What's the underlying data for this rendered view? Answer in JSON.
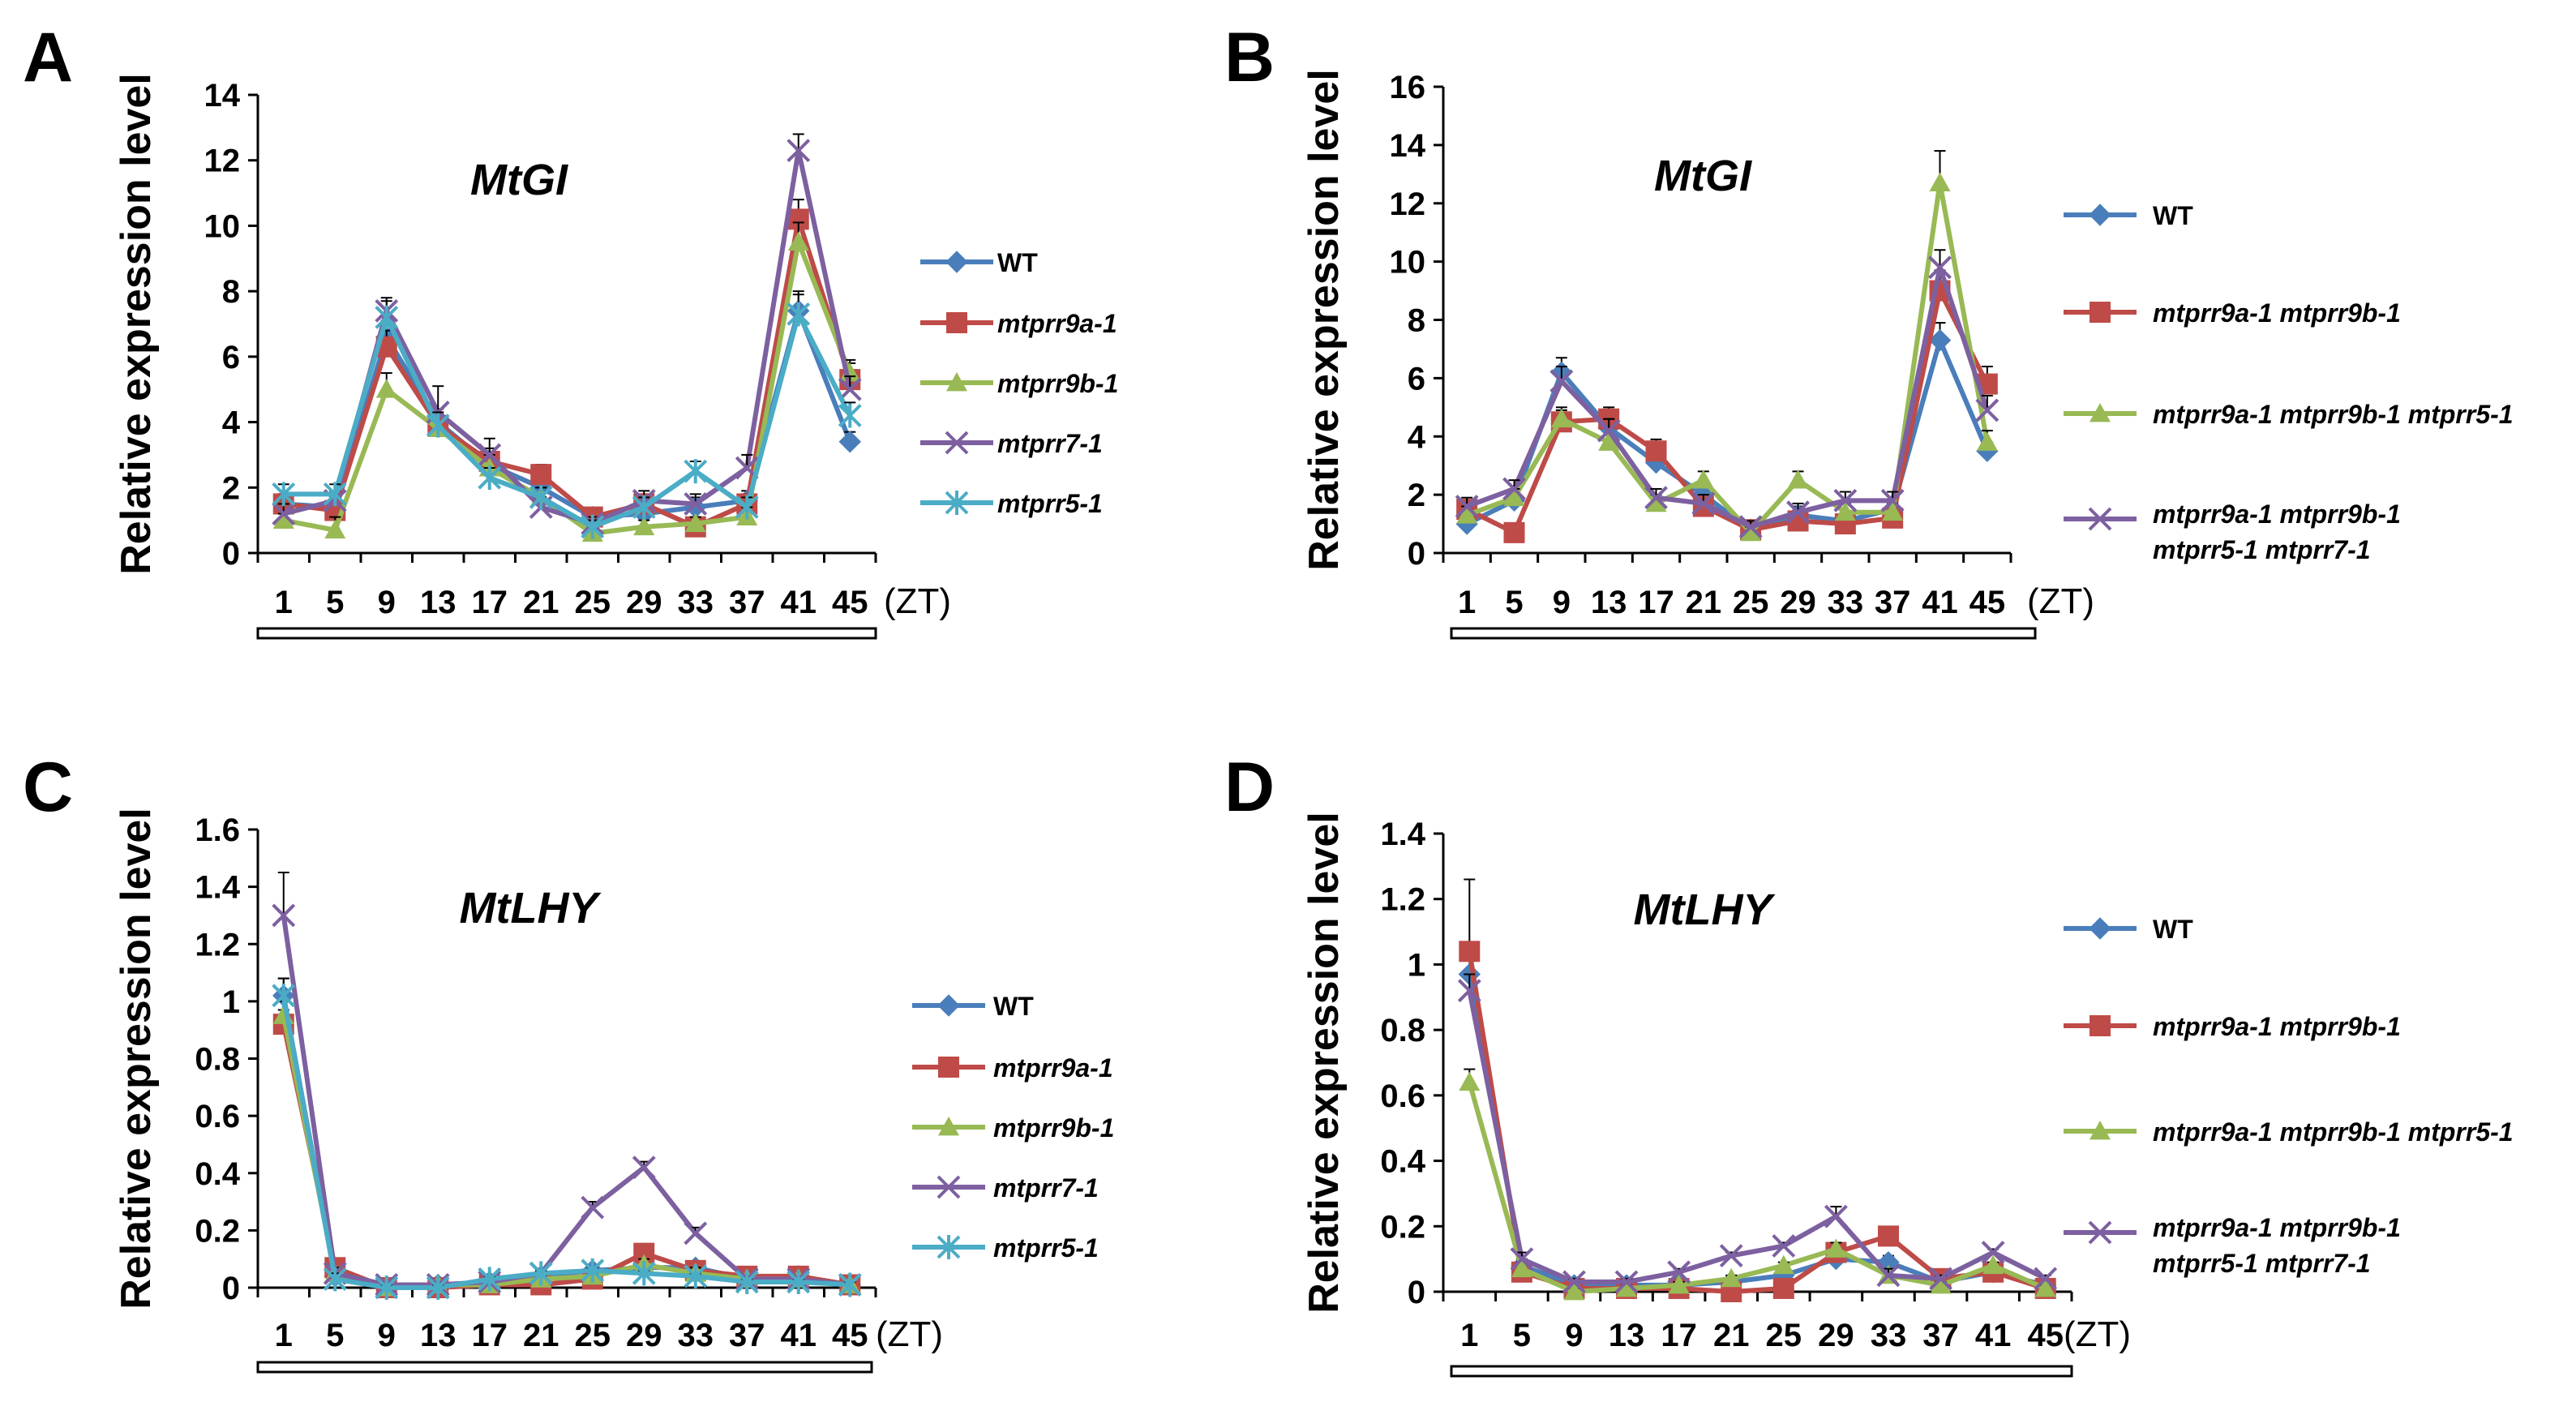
{
  "chart_data": [
    {
      "panel": "A",
      "type": "line",
      "title": "MtGI",
      "ylabel": "Relative expression level",
      "x_unit": "(ZT)",
      "ylim": [
        0,
        14
      ],
      "ytick_step": 2,
      "yticks": [
        "0",
        "2",
        "4",
        "6",
        "8",
        "10",
        "12",
        "14"
      ],
      "categories": [
        "1",
        "5",
        "9",
        "13",
        "17",
        "21",
        "25",
        "29",
        "33",
        "37",
        "41",
        "45"
      ],
      "series": [
        {
          "name": "WT",
          "color": "#4a7ebb",
          "marker": "diamond",
          "values": [
            1.5,
            1.4,
            6.6,
            4.0,
            2.7,
            2.0,
            1.1,
            1.2,
            1.4,
            1.6,
            7.4,
            3.4
          ],
          "errors": [
            0.3,
            0.3,
            0.5,
            0.4,
            0.4,
            0.3,
            0.2,
            0.2,
            0.3,
            0.3,
            0.6,
            0.3
          ]
        },
        {
          "name": "mtprr9a-1",
          "color": "#be4b48",
          "marker": "square",
          "values": [
            1.5,
            1.3,
            6.3,
            3.9,
            2.8,
            2.4,
            1.1,
            1.5,
            0.8,
            1.5,
            10.2,
            5.3
          ],
          "errors": [
            0.3,
            0.3,
            0.5,
            0.4,
            0.4,
            0.3,
            0.2,
            0.3,
            0.2,
            0.3,
            0.6,
            0.5
          ]
        },
        {
          "name": "mtprr9b-1",
          "color": "#98b954",
          "marker": "triangle",
          "values": [
            1.0,
            0.7,
            5.0,
            3.8,
            2.6,
            1.7,
            0.6,
            0.8,
            0.9,
            1.1,
            9.5,
            5.5
          ],
          "errors": [
            0.2,
            0.4,
            0.5,
            0.4,
            0.4,
            0.3,
            0.2,
            0.2,
            0.2,
            0.3,
            0.6,
            0.4
          ]
        },
        {
          "name": "mtprr7-1",
          "color": "#7d60a0",
          "marker": "x",
          "values": [
            1.2,
            1.6,
            7.4,
            4.3,
            3.0,
            1.4,
            0.9,
            1.6,
            1.5,
            2.6,
            12.3,
            5.0
          ],
          "errors": [
            0.3,
            0.3,
            0.4,
            0.8,
            0.5,
            0.3,
            0.2,
            0.3,
            0.3,
            0.4,
            0.5,
            0.4
          ]
        },
        {
          "name": "mtprr5-1",
          "color": "#4bacc6",
          "marker": "asterisk",
          "values": [
            1.8,
            1.8,
            7.2,
            3.9,
            2.3,
            1.7,
            0.8,
            1.4,
            2.5,
            1.4,
            7.3,
            4.2
          ],
          "errors": [
            0.3,
            0.3,
            0.5,
            0.4,
            0.3,
            0.3,
            0.2,
            0.3,
            0.3,
            0.3,
            0.6,
            0.4
          ]
        }
      ]
    },
    {
      "panel": "B",
      "type": "line",
      "title": "MtGI",
      "ylabel": "Relative expression level",
      "x_unit": "(ZT)",
      "ylim": [
        0,
        16
      ],
      "ytick_step": 2,
      "yticks": [
        "0",
        "2",
        "4",
        "6",
        "8",
        "10",
        "12",
        "14",
        "16"
      ],
      "categories": [
        "1",
        "5",
        "9",
        "13",
        "17",
        "21",
        "25",
        "29",
        "33",
        "37",
        "41",
        "45"
      ],
      "series": [
        {
          "name": "WT",
          "color": "#4a7ebb",
          "marker": "diamond",
          "values": [
            1.0,
            1.8,
            6.2,
            4.3,
            3.1,
            2.0,
            0.8,
            1.3,
            1.1,
            1.5,
            7.3,
            3.5
          ],
          "errors": [
            0.2,
            0.3,
            0.5,
            0.4,
            0.4,
            0.3,
            0.2,
            0.3,
            0.2,
            0.3,
            0.6,
            0.3
          ]
        },
        {
          "name": "mtprr9a-1 mtprr9b-1",
          "color": "#be4b48",
          "marker": "square",
          "values": [
            1.5,
            0.7,
            4.5,
            4.6,
            3.5,
            1.6,
            0.8,
            1.1,
            1.0,
            1.2,
            9.0,
            5.8
          ],
          "errors": [
            0.3,
            0.2,
            0.4,
            0.4,
            0.4,
            0.3,
            0.2,
            0.2,
            0.2,
            0.3,
            0.7,
            0.6
          ]
        },
        {
          "name": "mtprr9a-1 mtprr9b-1 mtprr5-1",
          "color": "#98b954",
          "marker": "triangle",
          "values": [
            1.3,
            1.9,
            4.6,
            3.8,
            1.7,
            2.5,
            0.7,
            2.5,
            1.4,
            1.4,
            12.7,
            3.8
          ],
          "errors": [
            0.3,
            0.3,
            0.4,
            0.8,
            0.3,
            0.3,
            0.2,
            0.3,
            0.3,
            0.3,
            1.1,
            0.4
          ]
        },
        {
          "name": "mtprr9a-1 mtprr9b-1 mtprr5-1 mtprr7-1",
          "color": "#7d60a0",
          "marker": "x",
          "values": [
            1.6,
            2.2,
            5.9,
            4.2,
            1.9,
            1.7,
            0.9,
            1.4,
            1.8,
            1.8,
            9.8,
            4.9
          ],
          "errors": [
            0.3,
            0.3,
            0.5,
            0.4,
            0.3,
            0.3,
            0.2,
            0.3,
            0.3,
            0.3,
            0.6,
            0.5
          ]
        }
      ],
      "legend_lines": [
        [
          "mtprr9a-1 mtprr9b-1 mtprr5-1 mtprr7-1"
        ]
      ]
    },
    {
      "panel": "C",
      "type": "line",
      "title": "MtLHY",
      "ylabel": "Relative expression level",
      "x_unit": "(ZT)",
      "ylim": [
        0,
        1.6
      ],
      "ytick_step": 0.2,
      "yticks": [
        "0",
        "0.2",
        "0.4",
        "0.6",
        "0.8",
        "1",
        "1.2",
        "1.4",
        "1.6"
      ],
      "categories": [
        "1",
        "5",
        "9",
        "13",
        "17",
        "21",
        "25",
        "29",
        "33",
        "37",
        "41",
        "45"
      ],
      "series": [
        {
          "name": "WT",
          "color": "#4a7ebb",
          "marker": "diamond",
          "values": [
            1.02,
            0.04,
            0.0,
            0.01,
            0.02,
            0.04,
            0.06,
            0.07,
            0.07,
            0.03,
            0.04,
            0.01
          ],
          "errors": [
            0.06,
            0.02,
            0.01,
            0.01,
            0.01,
            0.01,
            0.01,
            0.02,
            0.02,
            0.01,
            0.01,
            0.01
          ]
        },
        {
          "name": "mtprr9a-1",
          "color": "#be4b48",
          "marker": "square",
          "values": [
            0.92,
            0.07,
            0.0,
            0.0,
            0.01,
            0.01,
            0.03,
            0.12,
            0.06,
            0.04,
            0.04,
            0.01
          ],
          "errors": [
            0.05,
            0.02,
            0.01,
            0.01,
            0.01,
            0.01,
            0.01,
            0.02,
            0.02,
            0.01,
            0.01,
            0.01
          ]
        },
        {
          "name": "mtprr9b-1",
          "color": "#98b954",
          "marker": "triangle",
          "values": [
            0.95,
            0.05,
            0.0,
            0.01,
            0.01,
            0.03,
            0.04,
            0.08,
            0.05,
            0.03,
            0.03,
            0.01
          ],
          "errors": [
            0.05,
            0.02,
            0.01,
            0.01,
            0.01,
            0.01,
            0.01,
            0.02,
            0.02,
            0.01,
            0.01,
            0.01
          ]
        },
        {
          "name": "mtprr7-1",
          "color": "#7d60a0",
          "marker": "x",
          "values": [
            1.3,
            0.05,
            0.01,
            0.01,
            0.02,
            0.05,
            0.28,
            0.42,
            0.19,
            0.03,
            0.03,
            0.01
          ],
          "errors": [
            0.15,
            0.02,
            0.01,
            0.01,
            0.01,
            0.01,
            0.02,
            0.02,
            0.02,
            0.01,
            0.01,
            0.01
          ]
        },
        {
          "name": "mtprr5-1",
          "color": "#4bacc6",
          "marker": "asterisk",
          "values": [
            1.02,
            0.03,
            0.0,
            0.0,
            0.03,
            0.05,
            0.06,
            0.05,
            0.04,
            0.02,
            0.02,
            0.01
          ],
          "errors": [
            0.06,
            0.02,
            0.01,
            0.01,
            0.01,
            0.01,
            0.01,
            0.01,
            0.01,
            0.01,
            0.01,
            0.01
          ]
        }
      ]
    },
    {
      "panel": "D",
      "type": "line",
      "title": "MtLHY",
      "ylabel": "Relative expression level",
      "x_unit": "(ZT)",
      "ylim": [
        0,
        1.4
      ],
      "ytick_step": 0.2,
      "yticks": [
        "0",
        "0.2",
        "0.4",
        "0.6",
        "0.8",
        "1",
        "1.2",
        "1.4"
      ],
      "categories": [
        "1",
        "5",
        "9",
        "13",
        "17",
        "21",
        "25",
        "29",
        "33",
        "37",
        "41",
        "45"
      ],
      "series": [
        {
          "name": "WT",
          "color": "#4a7ebb",
          "marker": "diamond",
          "values": [
            0.97,
            0.08,
            0.02,
            0.02,
            0.02,
            0.03,
            0.05,
            0.1,
            0.09,
            0.03,
            0.06,
            0.02
          ],
          "errors": [
            0.05,
            0.02,
            0.01,
            0.01,
            0.01,
            0.01,
            0.01,
            0.02,
            0.02,
            0.01,
            0.01,
            0.01
          ]
        },
        {
          "name": "mtprr9a-1 mtprr9b-1",
          "color": "#be4b48",
          "marker": "square",
          "values": [
            1.04,
            0.06,
            0.01,
            0.01,
            0.01,
            0.0,
            0.01,
            0.12,
            0.17,
            0.04,
            0.06,
            0.01
          ],
          "errors": [
            0.22,
            0.02,
            0.01,
            0.01,
            0.01,
            0.01,
            0.01,
            0.02,
            0.02,
            0.01,
            0.01,
            0.01
          ]
        },
        {
          "name": "mtprr9a-1 mtprr9b-1 mtprr5-1",
          "color": "#98b954",
          "marker": "triangle",
          "values": [
            0.64,
            0.07,
            0.0,
            0.01,
            0.02,
            0.04,
            0.08,
            0.13,
            0.05,
            0.02,
            0.08,
            0.01
          ],
          "errors": [
            0.04,
            0.02,
            0.01,
            0.01,
            0.01,
            0.01,
            0.01,
            0.02,
            0.02,
            0.01,
            0.01,
            0.01
          ]
        },
        {
          "name": "mtprr9a-1 mtprr9b-1 mtprr5-1 mtprr7-1",
          "color": "#7d60a0",
          "marker": "x",
          "values": [
            0.92,
            0.1,
            0.03,
            0.03,
            0.06,
            0.11,
            0.14,
            0.23,
            0.05,
            0.04,
            0.12,
            0.04
          ],
          "errors": [
            0.05,
            0.02,
            0.01,
            0.01,
            0.01,
            0.01,
            0.01,
            0.03,
            0.02,
            0.01,
            0.01,
            0.01
          ]
        }
      ]
    }
  ]
}
